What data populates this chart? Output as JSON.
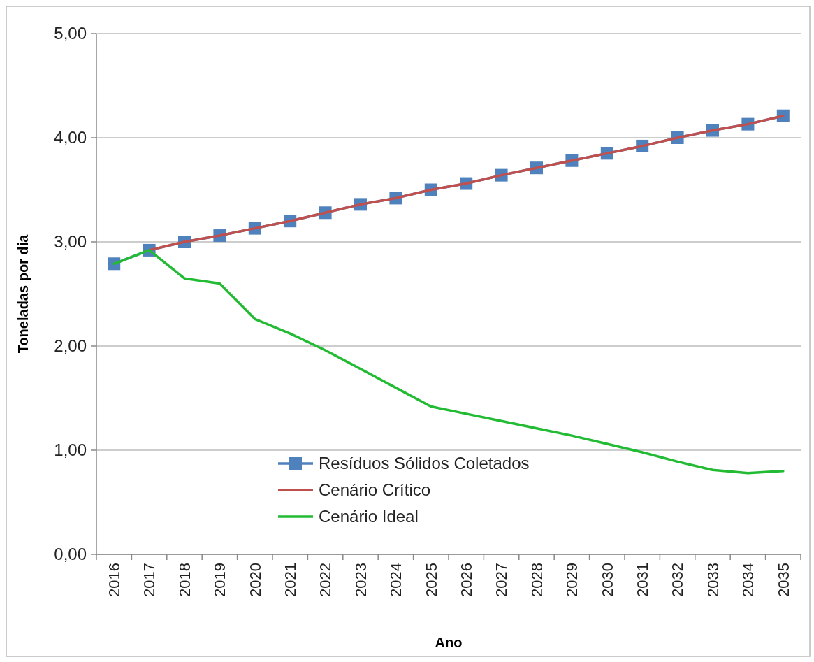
{
  "chart_data": {
    "type": "line",
    "xlabel": "Ano",
    "ylabel": "Toneladas por dia",
    "categories": [
      "2016",
      "2017",
      "2018",
      "2019",
      "2020",
      "2021",
      "2022",
      "2023",
      "2024",
      "2025",
      "2026",
      "2027",
      "2028",
      "2029",
      "2030",
      "2031",
      "2032",
      "2033",
      "2034",
      "2035"
    ],
    "ylim": [
      0,
      5
    ],
    "yticks": [
      {
        "value": 0,
        "label": "0,00"
      },
      {
        "value": 1,
        "label": "1,00"
      },
      {
        "value": 2,
        "label": "2,00"
      },
      {
        "value": 3,
        "label": "3,00"
      },
      {
        "value": 4,
        "label": "4,00"
      },
      {
        "value": 5,
        "label": "5,00"
      }
    ],
    "grid": "y",
    "legend": "bottom",
    "series": [
      {
        "name": "Resíduos Sólidos Coletados",
        "color": "#4f81bd",
        "marker": "square",
        "values": [
          2.79,
          2.92,
          3.0,
          3.06,
          3.13,
          3.2,
          3.28,
          3.36,
          3.42,
          3.5,
          3.56,
          3.64,
          3.71,
          3.78,
          3.85,
          3.92,
          4.0,
          4.07,
          4.13,
          4.21
        ]
      },
      {
        "name": "Cenário Crítico",
        "color": "#c0504d",
        "marker": "none",
        "values": [
          null,
          2.92,
          3.0,
          3.06,
          3.13,
          3.2,
          3.28,
          3.36,
          3.42,
          3.5,
          3.56,
          3.64,
          3.71,
          3.78,
          3.85,
          3.92,
          4.0,
          4.07,
          4.13,
          4.21
        ]
      },
      {
        "name": "Cenário Ideal",
        "color": "#22bb33",
        "marker": "none",
        "values": [
          2.79,
          2.92,
          2.65,
          2.6,
          2.26,
          2.12,
          1.96,
          1.78,
          1.6,
          1.42,
          1.35,
          1.28,
          1.21,
          1.14,
          1.06,
          0.98,
          0.89,
          0.81,
          0.78,
          0.8
        ]
      }
    ]
  }
}
